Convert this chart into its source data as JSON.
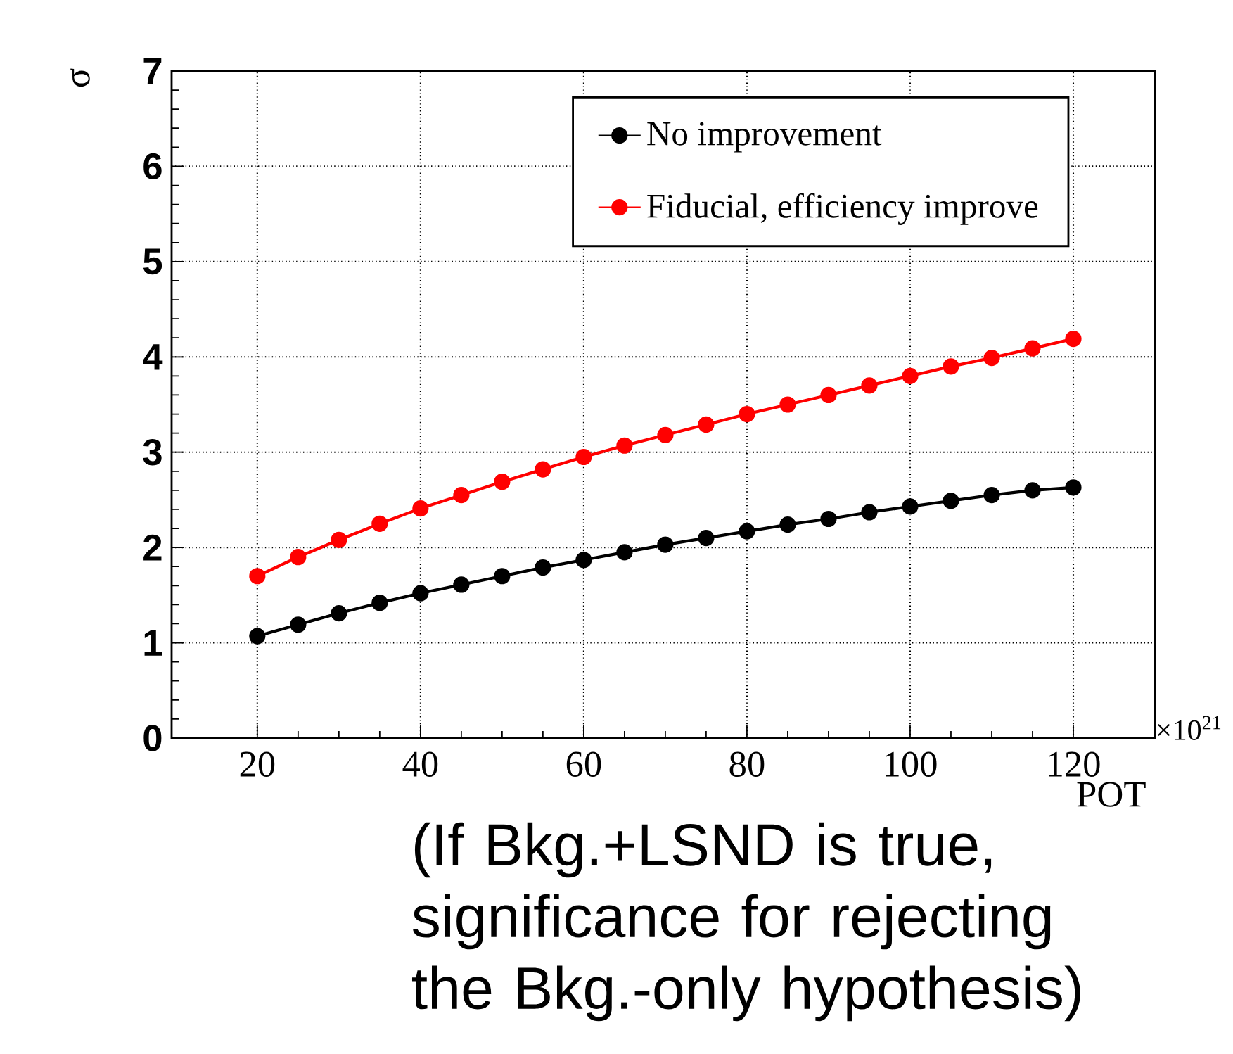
{
  "chart_data": {
    "type": "line",
    "xlabel": "POT",
    "ylabel": "σ",
    "annotations": [
      "×10$^{21}$",
      "(If Bkg.+LSND is true, significance for rejecting the Bkg.-only hypothesis)"
    ],
    "x": [
      20,
      25,
      30,
      35,
      40,
      45,
      50,
      55,
      60,
      65,
      70,
      75,
      80,
      85,
      90,
      95,
      100,
      105,
      110,
      115,
      120
    ],
    "series": [
      {
        "name": "No improvement",
        "color": "#000000",
        "values": [
          1.07,
          1.19,
          1.31,
          1.42,
          1.52,
          1.61,
          1.7,
          1.79,
          1.87,
          1.95,
          2.03,
          2.1,
          2.17,
          2.24,
          2.3,
          2.37,
          2.43,
          2.49,
          2.55,
          2.6,
          2.63
        ]
      },
      {
        "name": "Fiducial, efficiency improve",
        "color": "#ff0000",
        "values": [
          1.7,
          1.9,
          2.08,
          2.25,
          2.41,
          2.55,
          2.69,
          2.82,
          2.95,
          3.07,
          3.18,
          3.29,
          3.4,
          3.5,
          3.6,
          3.7,
          3.8,
          3.9,
          3.99,
          4.09,
          4.19
        ]
      }
    ],
    "xlim": [
      9.5,
      130
    ],
    "xticks": [
      20,
      40,
      60,
      80,
      100,
      120
    ],
    "ylim": [
      0,
      7
    ],
    "yticks": [
      0,
      1,
      2,
      3,
      4,
      5,
      6,
      7
    ],
    "grid": true,
    "legend": "top right",
    "marker": "circle",
    "line_style": "solid"
  }
}
